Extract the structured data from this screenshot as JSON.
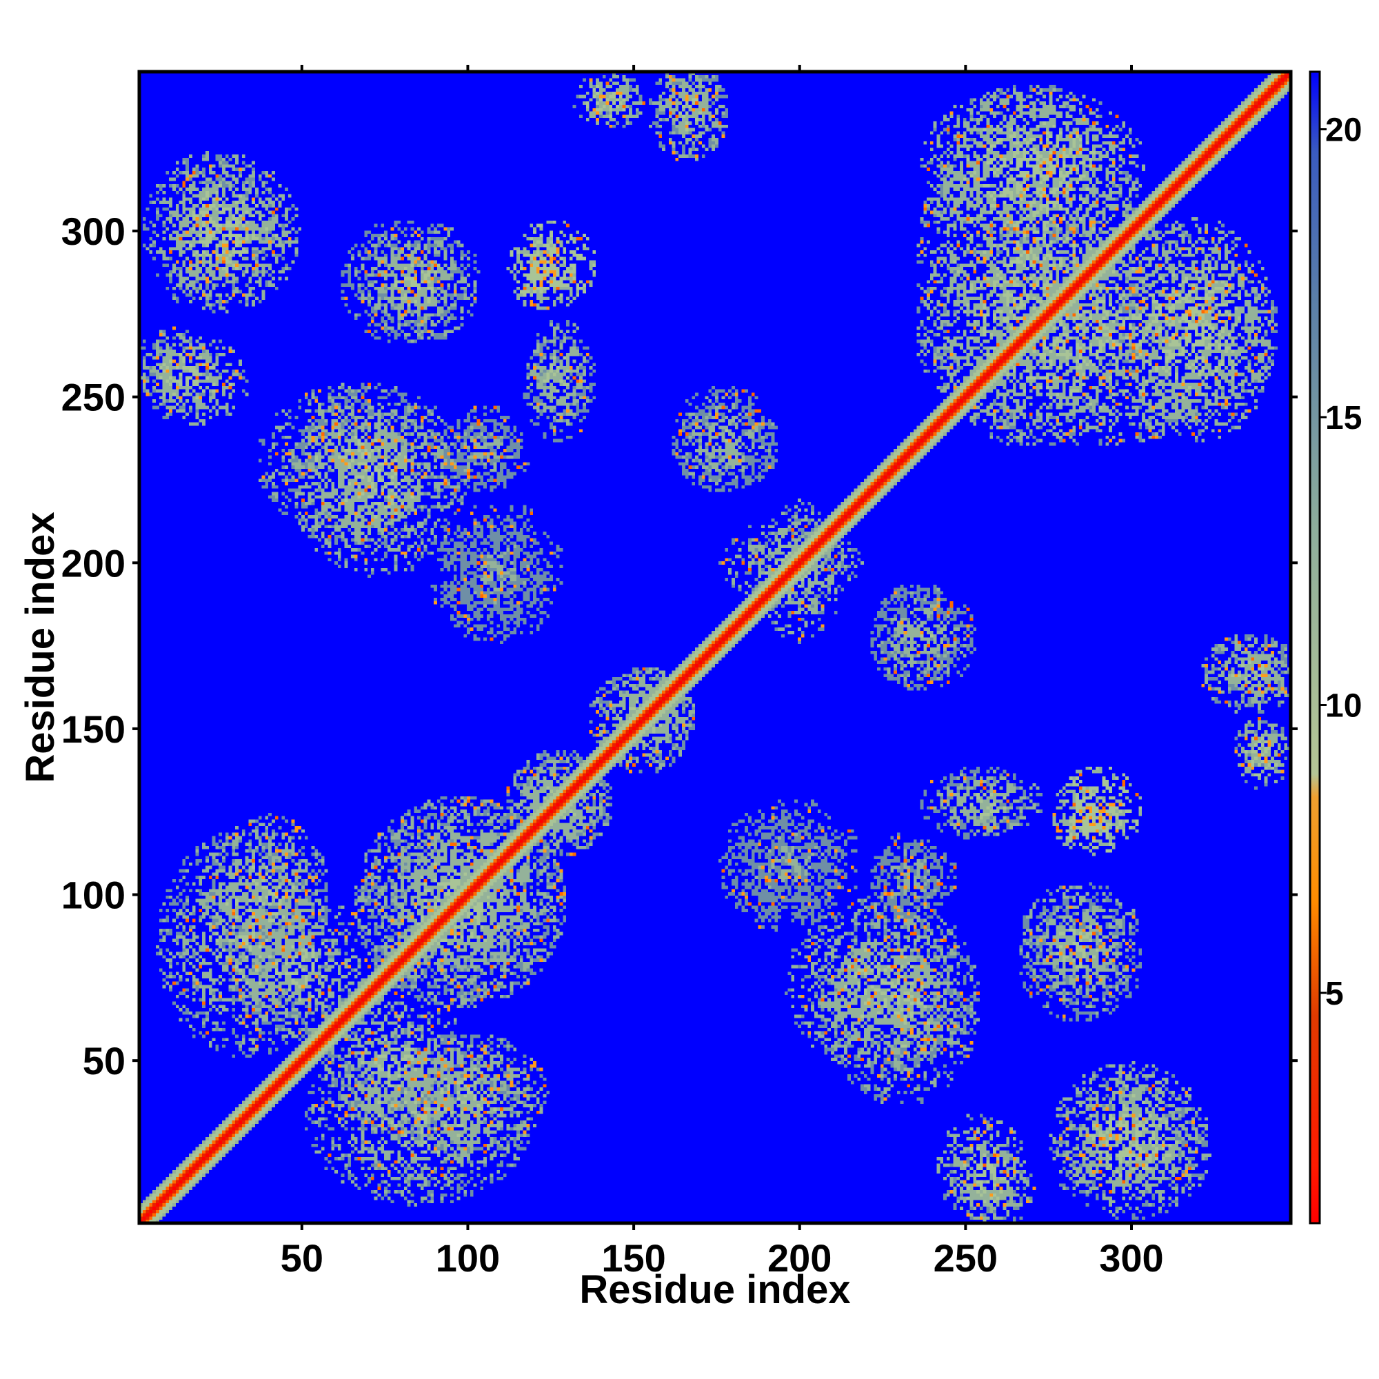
{
  "chart_data": {
    "type": "heatmap",
    "title": "",
    "xlabel": "Residue index",
    "ylabel": "Residue index",
    "xlim": [
      1,
      348
    ],
    "ylim": [
      1,
      348
    ],
    "x_ticks": [
      50,
      100,
      150,
      200,
      250,
      300
    ],
    "y_ticks": [
      50,
      100,
      150,
      200,
      250,
      300
    ],
    "x_tick_labels": [
      "50",
      "100",
      "150",
      "200",
      "250",
      "300"
    ],
    "y_tick_labels": [
      "50",
      "100",
      "150",
      "200",
      "250",
      "300"
    ],
    "matrix_size": 348,
    "value_description": "pairwise residue distance map, symmetric about the diagonal",
    "background_value": 21,
    "diagonal_band": [
      {
        "offset": 0,
        "value": 1.5
      },
      {
        "offset": 1,
        "value": 3.5
      },
      {
        "offset": 2,
        "value": 6
      },
      {
        "offset": 3,
        "value": 9
      },
      {
        "offset": 4,
        "value": 11
      },
      {
        "offset": 5,
        "value": 13
      }
    ],
    "contact_regions": [
      {
        "x": [
          5,
          40
        ],
        "y": [
          280,
          320
        ],
        "core_value": 9
      },
      {
        "x": [
          2,
          22
        ],
        "y": [
          248,
          268
        ],
        "core_value": 9
      },
      {
        "x": [
          65,
          95
        ],
        "y": [
          270,
          300
        ],
        "core_value": 10
      },
      {
        "x": [
          115,
          135
        ],
        "y": [
          280,
          300
        ],
        "core_value": 6
      },
      {
        "x": [
          120,
          135
        ],
        "y": [
          240,
          265
        ],
        "core_value": 10
      },
      {
        "x": [
          135,
          150
        ],
        "y": [
          335,
          345
        ],
        "core_value": 8
      },
      {
        "x": [
          158,
          175
        ],
        "y": [
          325,
          348
        ],
        "core_value": 9
      },
      {
        "x": [
          40,
          90
        ],
        "y": [
          210,
          250
        ],
        "core_value": 9
      },
      {
        "x": [
          97,
          112
        ],
        "y": [
          225,
          245
        ],
        "core_value": 11
      },
      {
        "x": [
          92,
          122
        ],
        "y": [
          180,
          210
        ],
        "core_value": 12
      },
      {
        "x": [
          165,
          190
        ],
        "y": [
          225,
          250
        ],
        "core_value": 10
      },
      {
        "x": [
          225,
          245
        ],
        "y": [
          165,
          190
        ],
        "core_value": 10
      },
      {
        "x": [
          330,
          345
        ],
        "y": [
          160,
          175
        ],
        "core_value": 9
      },
      {
        "x": [
          335,
          345
        ],
        "y": [
          140,
          150
        ],
        "core_value": 9
      },
      {
        "x": [
          245,
          270
        ],
        "y": [
          120,
          135
        ],
        "core_value": 9
      },
      {
        "x": [
          280,
          295
        ],
        "y": [
          115,
          130
        ],
        "core_value": 7
      },
      {
        "x": [
          180,
          215
        ],
        "y": [
          95,
          125
        ],
        "core_value": 12
      },
      {
        "x": [
          225,
          240
        ],
        "y": [
          95,
          115
        ],
        "core_value": 11
      },
      {
        "x": [
          270,
          300
        ],
        "y": [
          70,
          100
        ],
        "core_value": 9
      },
      {
        "x": [
          200,
          250
        ],
        "y": [
          50,
          95
        ],
        "core_value": 9
      },
      {
        "x": [
          280,
          320
        ],
        "y": [
          10,
          45
        ],
        "core_value": 8
      },
      {
        "x": [
          245,
          265
        ],
        "y": [
          5,
          30
        ],
        "core_value": 8
      },
      {
        "x": [
          80,
          120
        ],
        "y": [
          25,
          55
        ],
        "core_value": 9
      },
      {
        "x": [
          10,
          55
        ],
        "y": [
          55,
          115
        ],
        "core_value": 9
      },
      {
        "x": [
          60,
          95
        ],
        "y": [
          30,
          70
        ],
        "core_value": 9
      },
      {
        "x": [
          70,
          125
        ],
        "y": [
          70,
          125
        ],
        "core_value": 9
      },
      {
        "x": [
          115,
          140
        ],
        "y": [
          115,
          140
        ],
        "core_value": 9
      },
      {
        "x": [
          140,
          165
        ],
        "y": [
          140,
          165
        ],
        "core_value": 9
      },
      {
        "x": [
          190,
          210
        ],
        "y": [
          180,
          215
        ],
        "core_value": 9
      },
      {
        "x": [
          240,
          300
        ],
        "y": [
          240,
          340
        ],
        "core_value": 8
      },
      {
        "x": [
          300,
          340
        ],
        "y": [
          240,
          300
        ],
        "core_value": 8
      }
    ],
    "colorbar": {
      "ticks": [
        5,
        10,
        15,
        20
      ],
      "tick_labels": [
        "5",
        "10",
        "15",
        "20"
      ],
      "range": [
        1,
        21
      ],
      "colors": [
        "#ff0000",
        "#ff7f00",
        "#a8c29a",
        "#4a6fa5",
        "#0000ff"
      ]
    },
    "grid": false,
    "legend": "colorbar-right"
  }
}
